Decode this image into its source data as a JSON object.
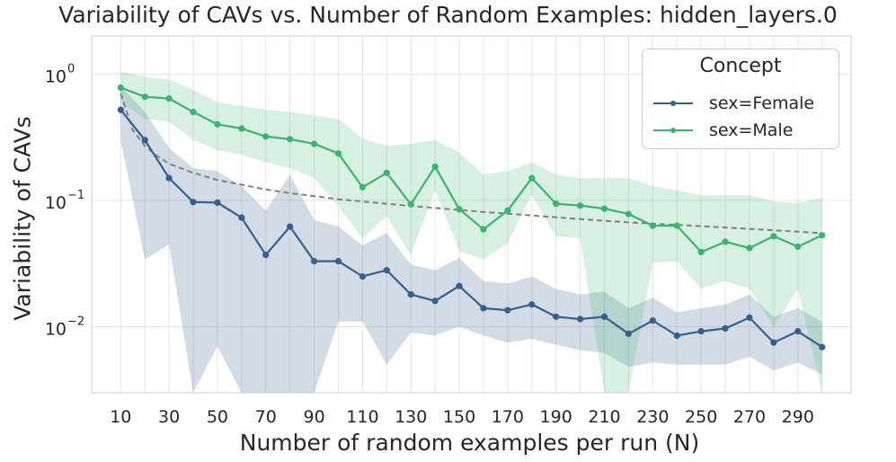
{
  "chart_data": {
    "type": "line",
    "title": "Variability of CAVs vs. Number of Random Examples: hidden_layers.0",
    "xlabel": "Number of random examples per run (N)",
    "ylabel": "Variability of CAVs",
    "yscale": "log",
    "ylim": [
      0.003,
      2.0
    ],
    "xlim": [
      -2,
      312
    ],
    "x": [
      10,
      20,
      30,
      40,
      50,
      60,
      70,
      80,
      90,
      100,
      110,
      120,
      130,
      140,
      150,
      160,
      170,
      180,
      190,
      200,
      210,
      220,
      230,
      240,
      250,
      260,
      270,
      280,
      290,
      300
    ],
    "x_tick_values": [
      10,
      30,
      50,
      70,
      90,
      110,
      130,
      150,
      170,
      190,
      210,
      230,
      250,
      270,
      290
    ],
    "x_tick_labels": [
      "10",
      "30",
      "50",
      "70",
      "90",
      "110",
      "130",
      "150",
      "170",
      "190",
      "210",
      "230",
      "250",
      "270",
      "290"
    ],
    "y_tick_values": [
      1,
      0.1,
      0.01
    ],
    "y_tick_bases": [
      "10",
      "10",
      "10"
    ],
    "y_tick_exponents": [
      "0",
      "−1",
      "−2"
    ],
    "grid": true,
    "legend": {
      "title": "Concept",
      "position": "top-right"
    },
    "series": [
      {
        "name": "sex=Female",
        "color": "#35608d",
        "values": [
          0.52,
          0.3,
          0.15,
          0.097,
          0.096,
          0.073,
          0.037,
          0.062,
          0.033,
          0.033,
          0.025,
          0.028,
          0.018,
          0.016,
          0.021,
          0.014,
          0.0135,
          0.015,
          0.012,
          0.0115,
          0.012,
          0.0088,
          0.0112,
          0.0085,
          0.0092,
          0.0097,
          0.0118,
          0.0075,
          0.0092,
          0.0069
        ],
        "band_upper": [
          0.8,
          0.5,
          0.26,
          0.18,
          0.17,
          0.13,
          0.083,
          0.16,
          0.07,
          0.062,
          0.044,
          0.055,
          0.031,
          0.028,
          0.035,
          0.023,
          0.022,
          0.025,
          0.02,
          0.018,
          0.019,
          0.014,
          0.017,
          0.013,
          0.014,
          0.015,
          0.018,
          0.012,
          0.014,
          0.011
        ],
        "band_lower": [
          0.3,
          0.034,
          0.045,
          0.003,
          0.007,
          0.003,
          0.003,
          0.003,
          0.003,
          0.011,
          0.011,
          0.005,
          0.009,
          0.0085,
          0.01,
          0.0085,
          0.0075,
          0.008,
          0.0072,
          0.0065,
          0.0062,
          0.0048,
          0.0052,
          0.005,
          0.005,
          0.005,
          0.0058,
          0.0045,
          0.0052,
          0.0042
        ]
      },
      {
        "name": "sex=Male",
        "color": "#3ab56e",
        "values": [
          0.78,
          0.66,
          0.64,
          0.5,
          0.4,
          0.37,
          0.32,
          0.305,
          0.28,
          0.235,
          0.127,
          0.165,
          0.093,
          0.185,
          0.085,
          0.059,
          0.083,
          0.15,
          0.094,
          0.091,
          0.086,
          0.078,
          0.063,
          0.063,
          0.039,
          0.047,
          0.042,
          0.052,
          0.043,
          0.053
        ],
        "band_upper": [
          1.05,
          0.95,
          0.9,
          0.75,
          0.6,
          0.56,
          0.52,
          0.5,
          0.47,
          0.44,
          0.31,
          0.27,
          0.28,
          0.3,
          0.24,
          0.16,
          0.17,
          0.2,
          0.16,
          0.15,
          0.15,
          0.15,
          0.13,
          0.12,
          0.11,
          0.11,
          0.11,
          0.098,
          0.095,
          0.105
        ],
        "band_lower": [
          0.6,
          0.44,
          0.42,
          0.3,
          0.25,
          0.23,
          0.2,
          0.18,
          0.15,
          0.09,
          0.05,
          0.075,
          0.037,
          0.12,
          0.04,
          0.034,
          0.046,
          0.11,
          0.052,
          0.05,
          0.003,
          0.003,
          0.032,
          0.033,
          0.02,
          0.023,
          0.02,
          0.01,
          0.02,
          0.003
        ]
      }
    ],
    "trend": {
      "name": "fitted trend",
      "style": "dashed",
      "color": "#808080",
      "x": [
        10,
        15,
        20,
        25,
        30,
        40,
        50,
        60,
        70,
        80,
        90,
        100,
        120,
        140,
        160,
        180,
        200,
        220,
        240,
        260,
        280,
        300
      ],
      "values": [
        0.7,
        0.36,
        0.27,
        0.225,
        0.195,
        0.165,
        0.145,
        0.133,
        0.122,
        0.114,
        0.108,
        0.102,
        0.094,
        0.087,
        0.081,
        0.076,
        0.071,
        0.067,
        0.064,
        0.061,
        0.058,
        0.055
      ]
    }
  }
}
